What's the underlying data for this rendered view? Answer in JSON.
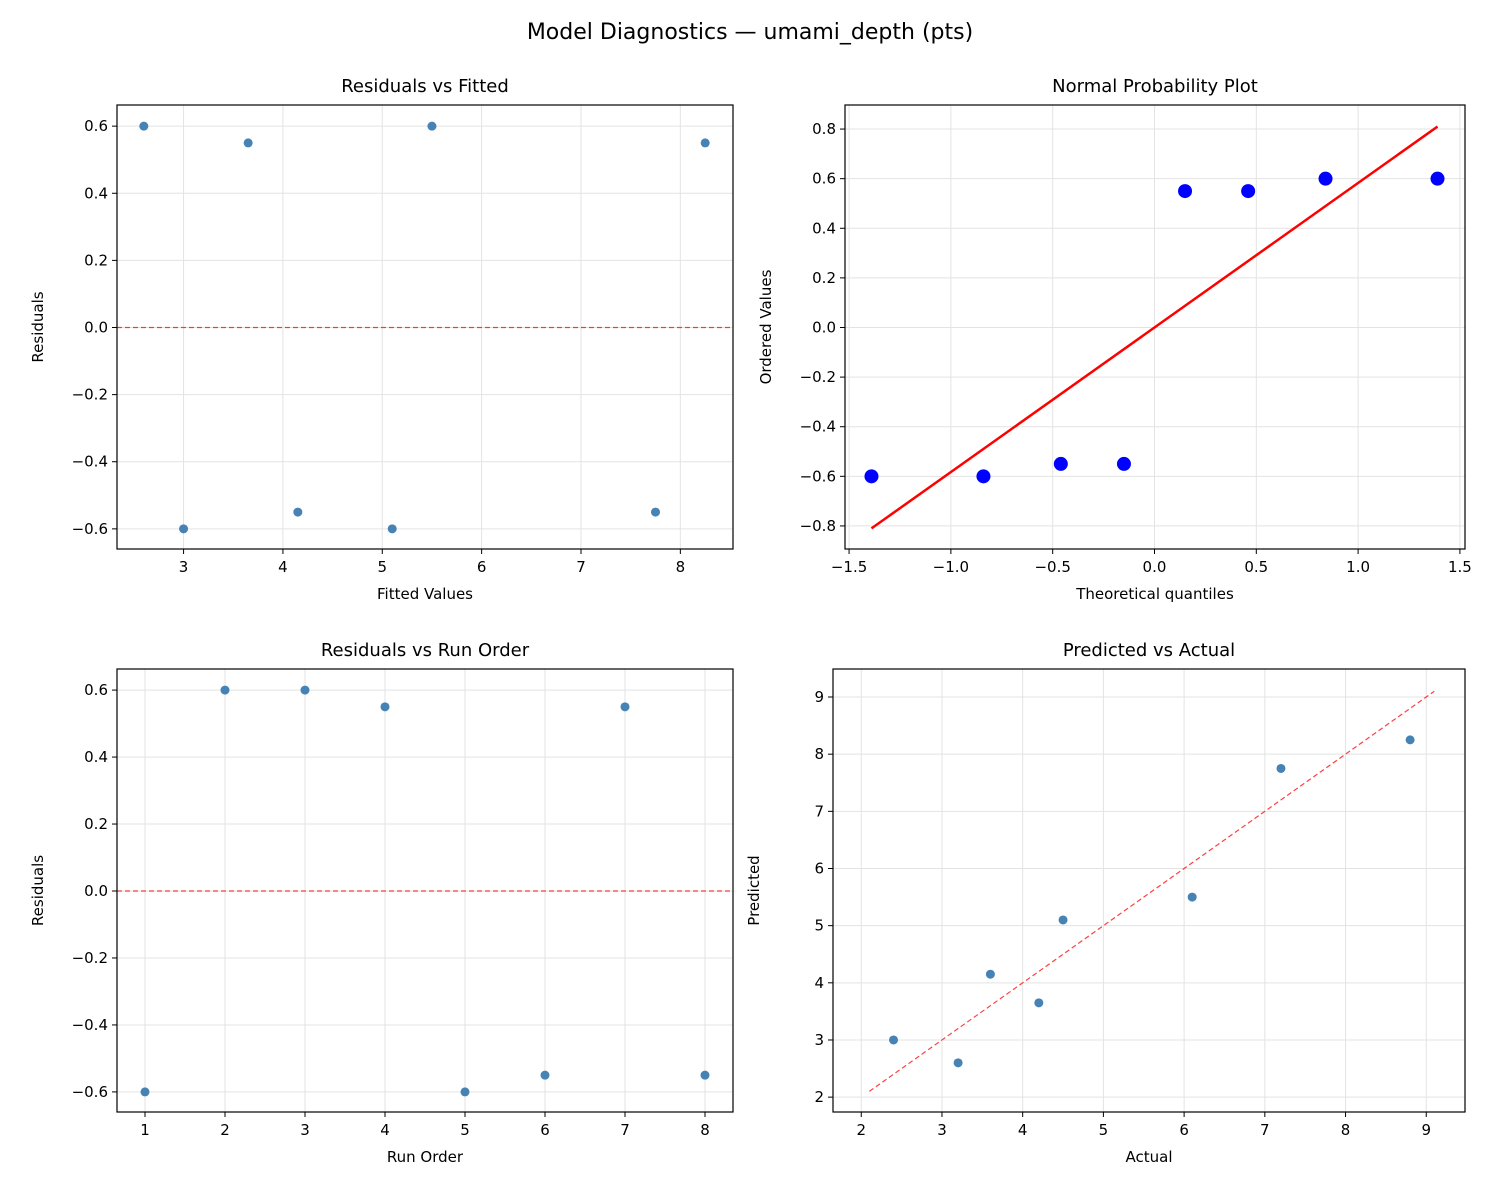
{
  "suptitle": "Model Diagnostics — umami_depth (pts)",
  "chart_data": [
    {
      "type": "scatter",
      "title": "Residuals vs Fitted",
      "xlabel": "Fitted Values",
      "ylabel": "Residuals",
      "xlim": [
        2.33,
        8.53
      ],
      "ylim": [
        -0.66,
        0.663
      ],
      "xticks": [
        3,
        4,
        5,
        6,
        7,
        8
      ],
      "xtick_labels": [
        "3",
        "4",
        "5",
        "6",
        "7",
        "8"
      ],
      "yticks": [
        -0.6,
        -0.4,
        -0.2,
        0.0,
        0.2,
        0.4,
        0.6
      ],
      "ytick_labels": [
        "−0.6",
        "−0.4",
        "−0.2",
        "0.0",
        "0.2",
        "0.4",
        "0.6"
      ],
      "grid": true,
      "x": [
        2.6,
        3.0,
        3.65,
        4.15,
        5.1,
        5.5,
        7.75,
        8.25
      ],
      "y": [
        0.6,
        -0.6,
        0.55,
        -0.55,
        -0.6,
        0.6,
        -0.55,
        0.55
      ],
      "point_color": "#4682b4",
      "reference_line": {
        "kind": "horizontal",
        "y": 0,
        "style": "dashed",
        "color": "#ff0000"
      }
    },
    {
      "type": "scatter",
      "title": "Normal Probability Plot",
      "xlabel": "Theoretical quantiles",
      "ylabel": "Ordered Values",
      "xlim": [
        -1.52,
        1.525
      ],
      "ylim": [
        -0.893,
        0.897
      ],
      "xticks": [
        -1.5,
        -1.0,
        -0.5,
        0.0,
        0.5,
        1.0,
        1.5
      ],
      "xtick_labels": [
        "−1.5",
        "−1.0",
        "−0.5",
        "0.0",
        "0.5",
        "1.0",
        "1.5"
      ],
      "yticks": [
        -0.8,
        -0.6,
        -0.4,
        -0.2,
        0.0,
        0.2,
        0.4,
        0.6,
        0.8
      ],
      "ytick_labels": [
        "−0.8",
        "−0.6",
        "−0.4",
        "−0.2",
        "0.0",
        "0.2",
        "0.4",
        "0.6",
        "0.8"
      ],
      "grid": true,
      "x": [
        -1.39,
        -0.84,
        -0.46,
        -0.15,
        0.15,
        0.46,
        0.84,
        1.39
      ],
      "y": [
        -0.6,
        -0.6,
        -0.55,
        -0.55,
        0.55,
        0.55,
        0.6,
        0.6
      ],
      "point_color": "#0000ff",
      "reference_line": {
        "kind": "segment",
        "x": [
          -1.39,
          1.39
        ],
        "y": [
          -0.81,
          0.81
        ],
        "style": "solid",
        "color": "#ff0000"
      }
    },
    {
      "type": "scatter",
      "title": "Residuals vs Run Order",
      "xlabel": "Run Order",
      "ylabel": "Residuals",
      "xlim": [
        0.65,
        8.35
      ],
      "ylim": [
        -0.66,
        0.663
      ],
      "xticks": [
        1,
        2,
        3,
        4,
        5,
        6,
        7,
        8
      ],
      "xtick_labels": [
        "1",
        "2",
        "3",
        "4",
        "5",
        "6",
        "7",
        "8"
      ],
      "yticks": [
        -0.6,
        -0.4,
        -0.2,
        0.0,
        0.2,
        0.4,
        0.6
      ],
      "ytick_labels": [
        "−0.6",
        "−0.4",
        "−0.2",
        "0.0",
        "0.2",
        "0.4",
        "0.6"
      ],
      "grid": true,
      "x": [
        1,
        2,
        3,
        4,
        5,
        6,
        7,
        8
      ],
      "y": [
        -0.6,
        0.6,
        0.6,
        0.55,
        -0.6,
        -0.55,
        0.55,
        -0.55
      ],
      "point_color": "#4682b4",
      "reference_line": {
        "kind": "horizontal",
        "y": 0,
        "style": "dashed",
        "color": "#ff0000"
      }
    },
    {
      "type": "scatter",
      "title": "Predicted vs Actual",
      "xlabel": "Actual",
      "ylabel": "Predicted",
      "xlim": [
        1.65,
        9.48
      ],
      "ylim": [
        1.74,
        9.49
      ],
      "xticks": [
        2,
        3,
        4,
        5,
        6,
        7,
        8,
        9
      ],
      "xtick_labels": [
        "2",
        "3",
        "4",
        "5",
        "6",
        "7",
        "8",
        "9"
      ],
      "yticks": [
        2,
        3,
        4,
        5,
        6,
        7,
        8,
        9
      ],
      "ytick_labels": [
        "2",
        "3",
        "4",
        "5",
        "6",
        "7",
        "8",
        "9"
      ],
      "grid": true,
      "x": [
        2.4,
        3.2,
        3.6,
        4.2,
        4.5,
        6.1,
        7.2,
        8.8
      ],
      "y": [
        3.0,
        2.6,
        4.15,
        3.65,
        5.1,
        5.5,
        7.75,
        8.25
      ],
      "point_color": "#4682b4",
      "reference_line": {
        "kind": "segment",
        "x": [
          2.1,
          9.1
        ],
        "y": [
          2.1,
          9.1
        ],
        "style": "dashed",
        "color": "#ff0000"
      }
    }
  ]
}
